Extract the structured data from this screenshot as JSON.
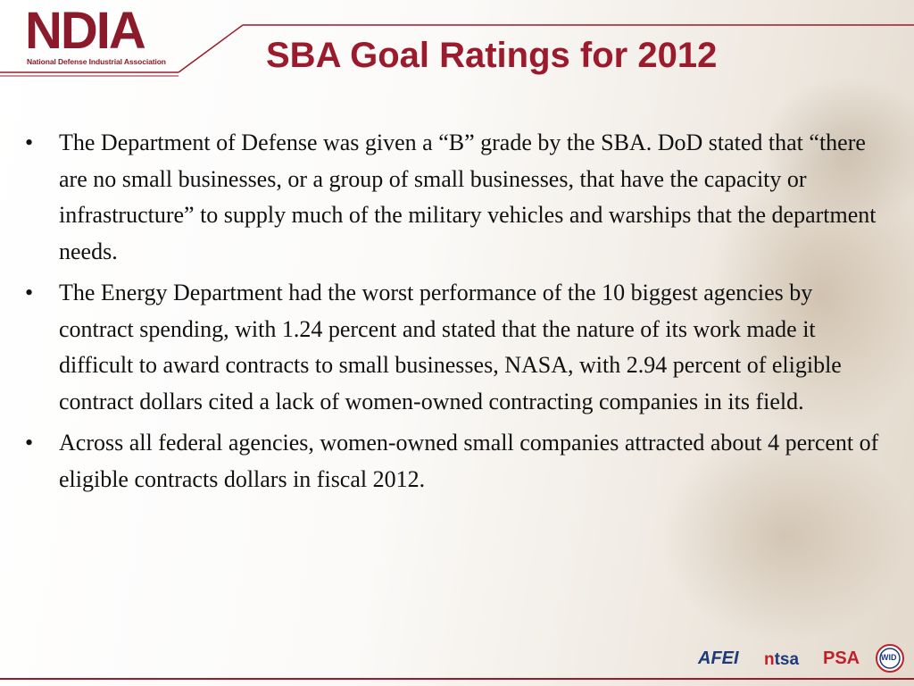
{
  "header": {
    "logo_text": "NDIA",
    "logo_subtitle": "National Defense Industrial Association",
    "title": "SBA Goal Ratings for 2012"
  },
  "bullet_symbol": "•",
  "bullets": [
    {
      "text": "The Department of Defense was given a “B” grade by the SBA. DoD stated that “there are no small businesses, or a group of small businesses, that have the capacity or infrastructure” to supply much of the military vehicles and warships that the department needs."
    },
    {
      "text": "The Energy Department had the worst performance of the 10 biggest agencies by contract spending, with 1.24 percent and stated that the nature of its work made it difficult to award contracts to small businesses,  NASA, with 2.94 percent of eligible contract dollars cited a lack of women-owned contracting companies in its field."
    },
    {
      "text": "Across all federal agencies, women-owned small companies attracted about 4 percent of eligible contracts dollars in fiscal 2012."
    }
  ],
  "footer": {
    "partner_logos": {
      "afei": "AFEI",
      "ntsa_n": "n",
      "ntsa_rest": "tsa",
      "psa": "PSA",
      "wid": "WID"
    }
  },
  "colors": {
    "brand_maroon": "#9b1b2c",
    "partner_blue": "#1d3a7a",
    "partner_red": "#c0202a"
  }
}
